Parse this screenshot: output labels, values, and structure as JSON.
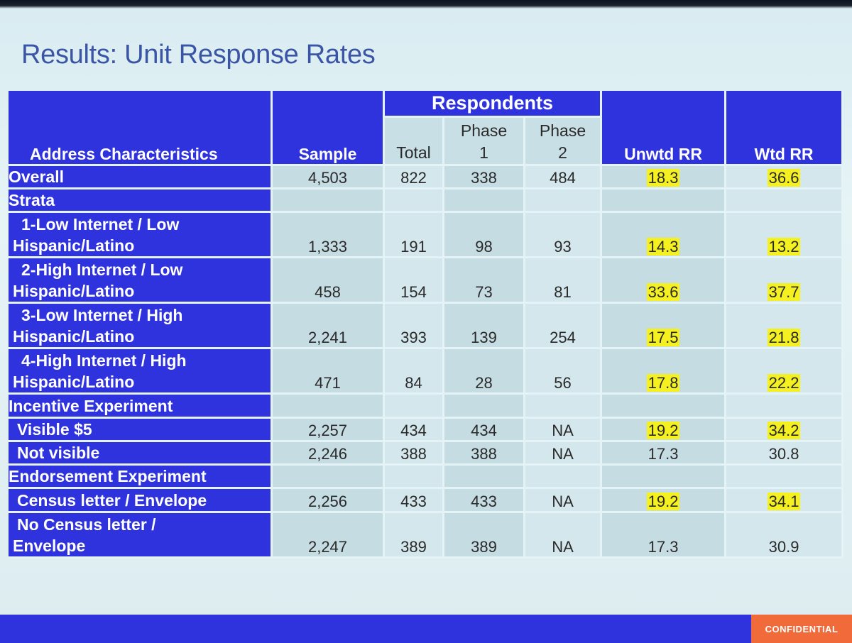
{
  "title": "Results: Unit Response Rates",
  "header": {
    "address": "Address Characteristics",
    "sample": "Sample",
    "respondents": "Respondents",
    "total": "Total",
    "phase1": "Phase 1",
    "phase2": "Phase 2",
    "unwtd": "Unwtd RR",
    "wtd": "Wtd RR"
  },
  "rows": [
    {
      "label": "Overall",
      "sample": "4,503",
      "total": "822",
      "phase1": "338",
      "phase2": "484",
      "unwtd": "18.3",
      "wtd": "36.6"
    },
    {
      "label": "Strata"
    },
    {
      "label_line1": "1-Low Internet / Low",
      "label_line2": "Hispanic/Latino",
      "sample": "1,333",
      "total": "191",
      "phase1": "98",
      "phase2": "93",
      "unwtd": "14.3",
      "wtd": "13.2"
    },
    {
      "label_line1": "2-High Internet / Low",
      "label_line2": "Hispanic/Latino",
      "sample": "458",
      "total": "154",
      "phase1": "73",
      "phase2": "81",
      "unwtd": "33.6",
      "wtd": "37.7"
    },
    {
      "label_line1": "3-Low Internet / High",
      "label_line2": "Hispanic/Latino",
      "sample": "2,241",
      "total": "393",
      "phase1": "139",
      "phase2": "254",
      "unwtd": "17.5",
      "wtd": "21.8"
    },
    {
      "label_line1": "4-High Internet / High",
      "label_line2": "Hispanic/Latino",
      "sample": "471",
      "total": "84",
      "phase1": "28",
      "phase2": "56",
      "unwtd": "17.8",
      "wtd": "22.2"
    },
    {
      "label": "Incentive Experiment"
    },
    {
      "label": "Visible $5",
      "sample": "2,257",
      "total": "434",
      "phase1": "434",
      "phase2": "NA",
      "unwtd": "19.2",
      "wtd": "34.2"
    },
    {
      "label": "Not visible",
      "sample": "2,246",
      "total": "388",
      "phase1": "388",
      "phase2": "NA",
      "unwtd": "17.3",
      "wtd": "30.8"
    },
    {
      "label": "Endorsement Experiment"
    },
    {
      "label": "Census letter / Envelope",
      "sample": "2,256",
      "total": "433",
      "phase1": "433",
      "phase2": "NA",
      "unwtd": "19.2",
      "wtd": "34.1"
    },
    {
      "label_line1": "No Census letter /",
      "label_line2": "Envelope",
      "sample": "2,247",
      "total": "389",
      "phase1": "389",
      "phase2": "NA",
      "unwtd": "17.3",
      "wtd": "30.9"
    }
  ],
  "footer": {
    "confidential": "CONFIDENTIAL"
  },
  "colors": {
    "header_blue": "#2f33dd",
    "highlight": "#f5f020",
    "confidential": "#f06a3a",
    "title": "#3b55a6"
  }
}
